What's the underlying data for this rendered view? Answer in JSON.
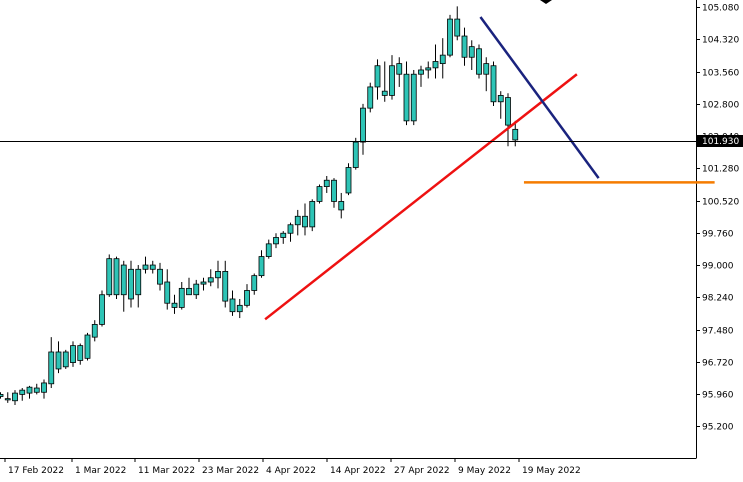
{
  "chart_data": {
    "type": "candlestick",
    "y_axis": {
      "range": [
        94.45,
        105.25
      ],
      "ticks": [
        "105.080",
        "104.320",
        "103.560",
        "102.800",
        "102.040",
        "101.280",
        "100.520",
        "99.760",
        "99.000",
        "98.240",
        "97.480",
        "96.720",
        "95.960",
        "95.200"
      ]
    },
    "x_axis": {
      "labels": [
        "17 Feb 2022",
        "1 Mar 2022",
        "11 Mar 2022",
        "23 Mar 2022",
        "4 Apr 2022",
        "14 Apr 2022",
        "27 Apr 2022",
        "9 May 2022",
        "19 May 2022"
      ]
    },
    "current_price": "101.930",
    "colors": {
      "up": "#2ec4b6",
      "down": "#2ec4b6",
      "wick": "#000000",
      "grid": "#000000"
    },
    "candles": [
      [
        95.95,
        96.0,
        95.85,
        95.9
      ],
      [
        95.85,
        96.0,
        95.75,
        95.82
      ],
      [
        95.8,
        96.05,
        95.7,
        95.98
      ],
      [
        95.95,
        96.1,
        95.8,
        96.05
      ],
      [
        95.98,
        96.15,
        95.85,
        96.12
      ],
      [
        96.1,
        96.2,
        95.95,
        96.0
      ],
      [
        96.0,
        96.3,
        95.85,
        96.22
      ],
      [
        96.2,
        97.3,
        96.1,
        96.95
      ],
      [
        96.95,
        97.2,
        96.45,
        96.55
      ],
      [
        96.6,
        97.0,
        96.55,
        96.95
      ],
      [
        96.7,
        97.2,
        96.6,
        97.1
      ],
      [
        97.1,
        97.15,
        96.65,
        96.75
      ],
      [
        96.8,
        97.4,
        96.75,
        97.35
      ],
      [
        97.3,
        97.7,
        97.2,
        97.6
      ],
      [
        97.6,
        98.4,
        97.55,
        98.3
      ],
      [
        98.3,
        99.25,
        98.25,
        99.15
      ],
      [
        99.15,
        99.2,
        98.2,
        98.3
      ],
      [
        98.3,
        99.1,
        97.9,
        99.0
      ],
      [
        98.9,
        99.1,
        98.0,
        98.2
      ],
      [
        98.3,
        99.0,
        98.0,
        98.9
      ],
      [
        98.9,
        99.2,
        98.8,
        99.0
      ],
      [
        99.0,
        99.1,
        98.8,
        98.9
      ],
      [
        98.9,
        99.05,
        98.4,
        98.55
      ],
      [
        98.6,
        98.9,
        97.95,
        98.1
      ],
      [
        98.1,
        98.3,
        97.85,
        98.0
      ],
      [
        98.0,
        98.6,
        97.95,
        98.45
      ],
      [
        98.45,
        98.7,
        98.35,
        98.3
      ],
      [
        98.3,
        98.65,
        98.2,
        98.55
      ],
      [
        98.55,
        98.7,
        98.4,
        98.6
      ],
      [
        98.6,
        98.9,
        98.5,
        98.7
      ],
      [
        98.7,
        99.1,
        98.45,
        98.85
      ],
      [
        98.85,
        99.1,
        98.0,
        98.15
      ],
      [
        98.2,
        98.4,
        97.8,
        97.9
      ],
      [
        97.9,
        98.2,
        97.75,
        98.05
      ],
      [
        98.05,
        98.55,
        98.0,
        98.4
      ],
      [
        98.4,
        98.8,
        98.3,
        98.75
      ],
      [
        98.75,
        99.35,
        98.7,
        99.2
      ],
      [
        99.2,
        99.6,
        99.15,
        99.5
      ],
      [
        99.5,
        99.75,
        99.4,
        99.65
      ],
      [
        99.65,
        99.8,
        99.5,
        99.75
      ],
      [
        99.75,
        100.0,
        99.55,
        99.95
      ],
      [
        99.95,
        100.3,
        99.7,
        100.15
      ],
      [
        100.15,
        100.45,
        99.7,
        99.9
      ],
      [
        99.9,
        100.55,
        99.8,
        100.5
      ],
      [
        100.5,
        100.9,
        100.45,
        100.85
      ],
      [
        100.85,
        101.1,
        100.7,
        101.0
      ],
      [
        101.0,
        101.05,
        100.35,
        100.5
      ],
      [
        100.5,
        100.7,
        100.1,
        100.3
      ],
      [
        100.7,
        101.4,
        100.65,
        101.3
      ],
      [
        101.3,
        102.0,
        101.25,
        101.9
      ],
      [
        101.9,
        102.8,
        101.6,
        102.7
      ],
      [
        102.7,
        103.3,
        102.6,
        103.2
      ],
      [
        103.2,
        103.85,
        102.9,
        103.7
      ],
      [
        103.1,
        103.8,
        102.85,
        103.0
      ],
      [
        103.0,
        103.95,
        102.9,
        103.7
      ],
      [
        103.75,
        103.9,
        103.2,
        103.5
      ],
      [
        103.5,
        103.8,
        102.3,
        102.4
      ],
      [
        102.4,
        103.6,
        102.3,
        103.5
      ],
      [
        103.5,
        103.7,
        103.2,
        103.6
      ],
      [
        103.6,
        103.8,
        103.4,
        103.65
      ],
      [
        103.65,
        104.2,
        103.4,
        103.8
      ],
      [
        103.75,
        104.35,
        103.4,
        103.95
      ],
      [
        103.95,
        104.9,
        103.9,
        104.8
      ],
      [
        104.8,
        105.1,
        104.3,
        104.4
      ],
      [
        104.4,
        104.6,
        103.7,
        103.9
      ],
      [
        103.9,
        104.3,
        103.6,
        104.15
      ],
      [
        104.1,
        104.2,
        103.4,
        103.5
      ],
      [
        103.5,
        103.9,
        103.1,
        103.75
      ],
      [
        103.7,
        103.8,
        102.75,
        102.85
      ],
      [
        102.85,
        103.1,
        102.45,
        103.0
      ],
      [
        102.95,
        103.05,
        101.8,
        102.3
      ],
      [
        102.2,
        102.4,
        101.8,
        101.95
      ]
    ],
    "annotations": [
      {
        "kind": "trendline",
        "color": "#ee1111",
        "from": [
          36.5,
          97.72
        ],
        "to": [
          79.5,
          103.5
        ]
      },
      {
        "kind": "trendline",
        "color": "#1a237e",
        "from": [
          66.2,
          104.85
        ],
        "to": [
          82.5,
          101.05
        ]
      },
      {
        "kind": "hline",
        "color": "#f57c00",
        "from": [
          72.2,
          100.95
        ],
        "to": [
          98.5,
          100.95
        ]
      },
      {
        "kind": "price-line",
        "color": "#000000",
        "value": 101.93
      }
    ]
  }
}
